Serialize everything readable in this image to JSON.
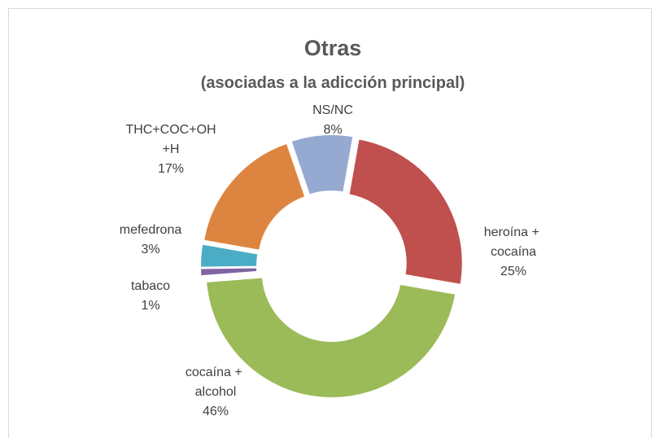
{
  "chart_data": {
    "type": "donut",
    "title": "Otras",
    "subtitle": "(asociadas a la adicción principal)",
    "categories": [
      "heroína + cocaína",
      "cocaína + alcohol",
      "tabaco",
      "mefedrona",
      "THC+COC+OH+H",
      "NS/NC"
    ],
    "values": [
      25,
      46,
      1,
      3,
      17,
      8
    ],
    "value_labels": [
      "25%",
      "46%",
      "1%",
      "3%",
      "17%",
      "8%"
    ],
    "colors": [
      "#c0504d",
      "#9bbb59",
      "#8064a2",
      "#4bacc6",
      "#dd8540",
      "#95a9d1"
    ]
  }
}
